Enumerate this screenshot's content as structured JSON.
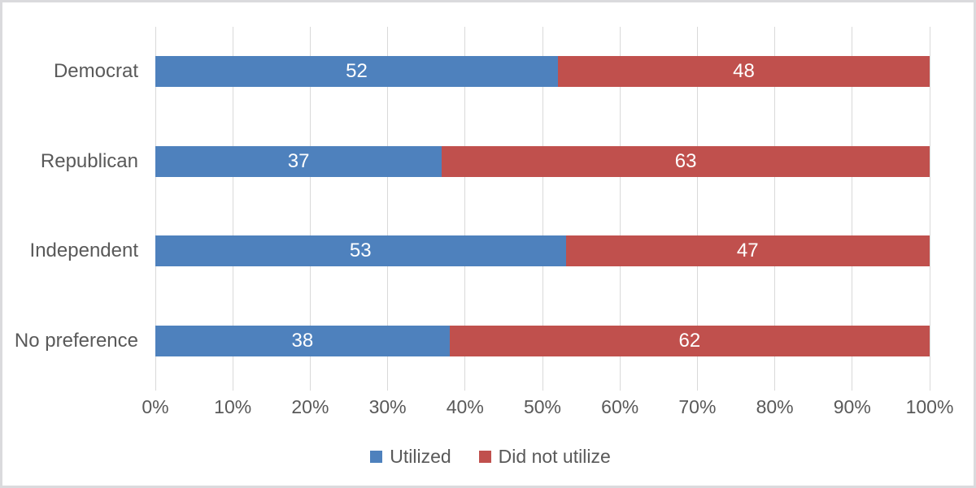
{
  "frame": {
    "background_color": "#ffffff",
    "border_color": "#dadadd"
  },
  "chart_data": {
    "type": "bar",
    "orientation": "horizontal",
    "stacked": true,
    "title": "",
    "xlabel": "",
    "ylabel": "",
    "categories": [
      "Democrat",
      "Republican",
      "Independent",
      "No preference"
    ],
    "series": [
      {
        "name": "Utilized",
        "color": "#4e81bd",
        "values": [
          52,
          37,
          53,
          38
        ]
      },
      {
        "name": "Did not utilize",
        "color": "#c0504d",
        "values": [
          48,
          63,
          47,
          62
        ]
      }
    ],
    "x_axis": {
      "min": 0,
      "max": 100,
      "tick_labels": [
        "0%",
        "10%",
        "20%",
        "30%",
        "40%",
        "50%",
        "60%",
        "70%",
        "80%",
        "90%",
        "100%"
      ]
    },
    "gridlines": true,
    "gridline_color": "#d9d9d9",
    "axis_text_color": "#595959",
    "data_label_color": "#ffffff",
    "legend": {
      "position": "bottom",
      "entries": [
        {
          "label": "Utilized",
          "color": "#4e81bd"
        },
        {
          "label": "Did not utilize",
          "color": "#c0504d"
        }
      ]
    }
  }
}
